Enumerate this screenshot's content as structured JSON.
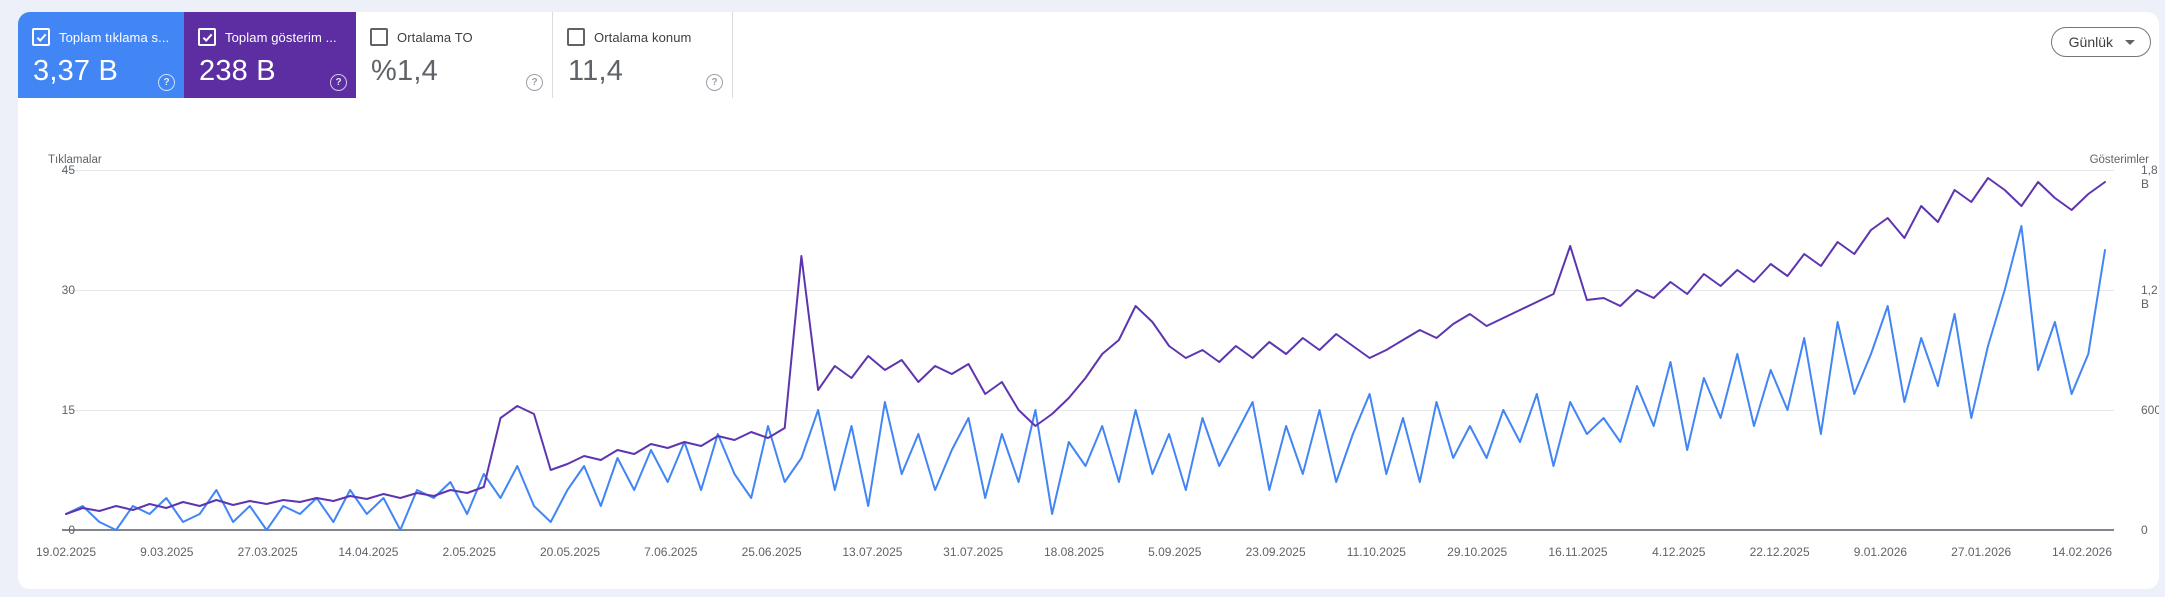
{
  "toolbar": {
    "granularity_label": "Günlük"
  },
  "cards": [
    {
      "id": "clicks",
      "label": "Toplam tıklama s...",
      "value": "3,37 B",
      "checked": true,
      "style": "blue",
      "bg": "#4285f4"
    },
    {
      "id": "impressions",
      "label": "Toplam gösterim ...",
      "value": "238 B",
      "checked": true,
      "style": "purple",
      "bg": "#5c2ea2"
    },
    {
      "id": "ctr",
      "label": "Ortalama TO",
      "value": "%1,4",
      "checked": false,
      "style": "white",
      "bg": "#ffffff"
    },
    {
      "id": "position",
      "label": "Ortalama konum",
      "value": "11,4",
      "checked": false,
      "style": "white",
      "bg": "#ffffff"
    }
  ],
  "help_icon_glyph": "?",
  "chart_data": {
    "type": "line",
    "left_axis": {
      "title": "Tıklamalar",
      "ticks": [
        "45",
        "30",
        "15",
        "0"
      ],
      "max": 45,
      "min": 0
    },
    "right_axis": {
      "title": "Gösterimler",
      "ticks": [
        "1,8 B",
        "1,2 B",
        "600",
        "0"
      ],
      "max": 1800,
      "min": 0
    },
    "x_tick_labels": [
      "19.02.2025",
      "9.03.2025",
      "27.03.2025",
      "14.04.2025",
      "2.05.2025",
      "20.05.2025",
      "7.06.2025",
      "25.06.2025",
      "13.07.2025",
      "31.07.2025",
      "18.08.2025",
      "5.09.2025",
      "23.09.2025",
      "11.10.2025",
      "29.10.2025",
      "16.11.2025",
      "4.12.2025",
      "22.12.2025",
      "9.01.2026",
      "27.01.2026",
      "14.02.2026"
    ],
    "grid": true,
    "legend_position": "none",
    "series": [
      {
        "name": "Tıklamalar",
        "axis": "left",
        "color": "#4285f4",
        "values": [
          2,
          3,
          1,
          0,
          3,
          2,
          4,
          1,
          2,
          5,
          1,
          3,
          0,
          3,
          2,
          4,
          1,
          5,
          2,
          4,
          0,
          5,
          4,
          6,
          2,
          7,
          4,
          8,
          3,
          1,
          5,
          8,
          3,
          9,
          5,
          10,
          6,
          11,
          5,
          12,
          7,
          4,
          13,
          6,
          9,
          15,
          5,
          13,
          3,
          16,
          7,
          12,
          5,
          10,
          14,
          4,
          12,
          6,
          15,
          2,
          11,
          8,
          13,
          6,
          15,
          7,
          12,
          5,
          14,
          8,
          12,
          16,
          5,
          13,
          7,
          15,
          6,
          12,
          17,
          7,
          14,
          6,
          16,
          9,
          13,
          9,
          15,
          11,
          17,
          8,
          16,
          12,
          14,
          11,
          18,
          13,
          21,
          10,
          19,
          14,
          22,
          13,
          20,
          15,
          24,
          12,
          26,
          17,
          22,
          28,
          16,
          24,
          18,
          27,
          14,
          23,
          30,
          38,
          20,
          26,
          17,
          22,
          35
        ]
      },
      {
        "name": "Gösterimler",
        "axis": "right",
        "color": "#5e35b1",
        "values": [
          80,
          110,
          95,
          120,
          100,
          130,
          110,
          140,
          120,
          150,
          125,
          145,
          130,
          150,
          140,
          160,
          145,
          170,
          155,
          180,
          160,
          185,
          170,
          200,
          185,
          215,
          560,
          620,
          580,
          300,
          330,
          370,
          350,
          400,
          380,
          430,
          410,
          440,
          420,
          470,
          450,
          490,
          460,
          510,
          1370,
          700,
          820,
          760,
          870,
          800,
          850,
          740,
          820,
          780,
          830,
          680,
          740,
          600,
          520,
          580,
          660,
          760,
          880,
          950,
          1120,
          1040,
          920,
          860,
          900,
          840,
          920,
          860,
          940,
          880,
          960,
          900,
          980,
          920,
          860,
          900,
          950,
          1000,
          960,
          1030,
          1080,
          1020,
          1060,
          1100,
          1140,
          1180,
          1420,
          1150,
          1160,
          1120,
          1200,
          1160,
          1240,
          1180,
          1280,
          1220,
          1300,
          1240,
          1330,
          1270,
          1380,
          1320,
          1440,
          1380,
          1500,
          1560,
          1460,
          1620,
          1540,
          1700,
          1640,
          1760,
          1700,
          1620,
          1740,
          1660,
          1600,
          1680,
          1740
        ]
      }
    ]
  },
  "colors": {
    "page_background": "#edf0f8",
    "panel_background": "#ffffff",
    "clicks_blue": "#4285f4",
    "impressions_purple": "#5c2ea2",
    "gridline": "#e4e6ea",
    "axis_line": "#80868b",
    "axis_text": "#5f6368"
  }
}
